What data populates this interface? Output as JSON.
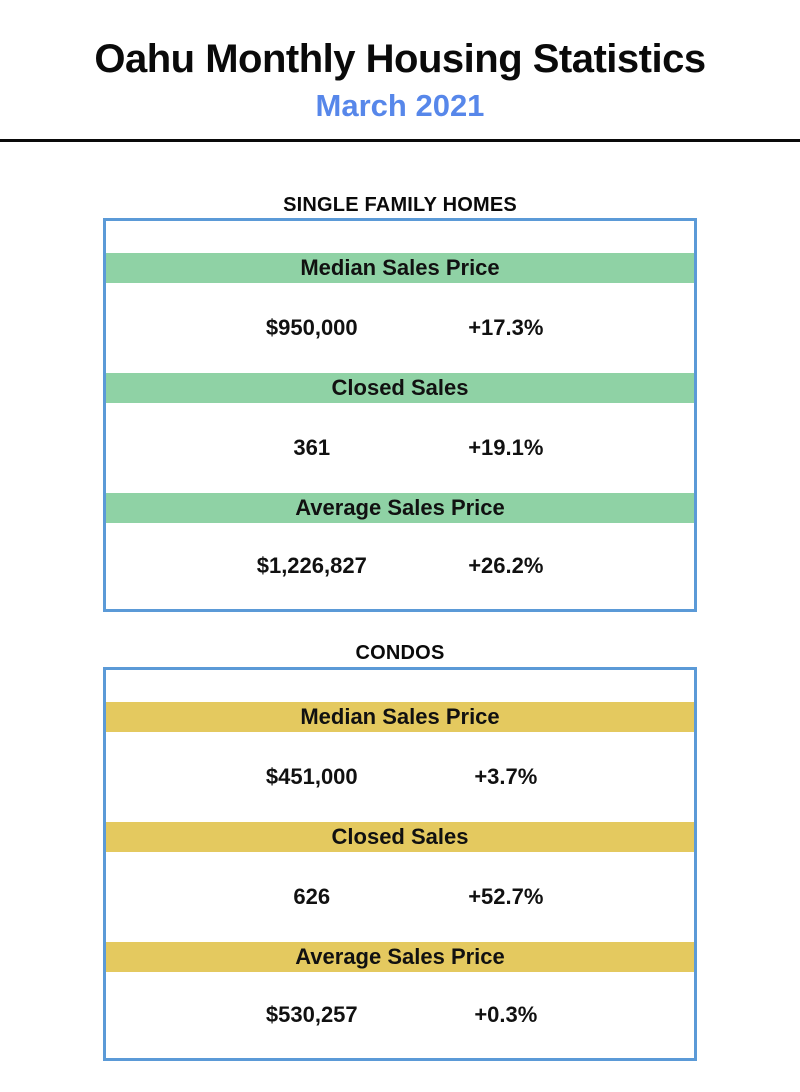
{
  "header": {
    "title": "Oahu Monthly Housing Statistics",
    "subtitle": "March 2021"
  },
  "colors": {
    "title_text": "#0a0a0a",
    "subtitle_blue": "#5787ea",
    "box_border_blue": "#5b9ad7",
    "single_family_accent_green": "#8fd2a5",
    "condos_accent_gold": "#e4c95f"
  },
  "sections": [
    {
      "heading": "SINGLE FAMILY HOMES",
      "accent": "green",
      "rows": [
        {
          "label": "Median Sales Price",
          "value": "$950,000",
          "change": "+17.3%"
        },
        {
          "label": "Closed Sales",
          "value": "361",
          "change": "+19.1%"
        },
        {
          "label": "Average Sales Price",
          "value": "$1,226,827",
          "change": "+26.2%"
        }
      ]
    },
    {
      "heading": "CONDOS",
      "accent": "gold",
      "rows": [
        {
          "label": "Median Sales Price",
          "value": "$451,000",
          "change": "+3.7%"
        },
        {
          "label": "Closed Sales",
          "value": "626",
          "change": "+52.7%"
        },
        {
          "label": "Average Sales Price",
          "value": "$530,257",
          "change": "+0.3%"
        }
      ]
    }
  ]
}
